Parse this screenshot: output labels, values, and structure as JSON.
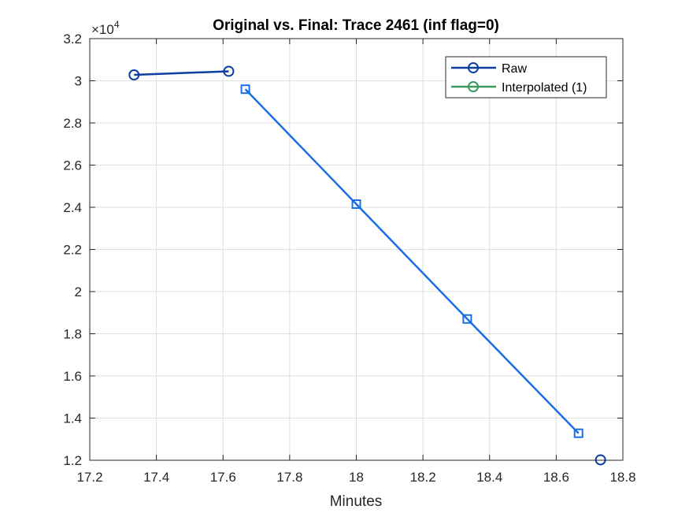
{
  "chart_data": {
    "type": "line",
    "title": "Original vs. Final: Trace 2461 (inf flag=0)",
    "xlabel": "Minutes",
    "ylabel": "",
    "xlim": [
      17.2,
      18.8
    ],
    "ylim": [
      12000,
      32000
    ],
    "xticks": [
      17.2,
      17.4,
      17.6,
      17.8,
      18,
      18.2,
      18.4,
      18.6,
      18.8
    ],
    "xtick_labels": [
      "17.2",
      "17.4",
      "17.6",
      "17.8",
      "18",
      "18.2",
      "18.4",
      "18.6",
      "18.8"
    ],
    "yticks": [
      12000,
      14000,
      16000,
      18000,
      20000,
      22000,
      24000,
      26000,
      28000,
      30000,
      32000
    ],
    "ytick_labels": [
      "1.2",
      "1.4",
      "1.6",
      "1.8",
      "2",
      "2.2",
      "2.4",
      "2.6",
      "2.8",
      "3",
      "3.2"
    ],
    "y_exponent_label": "×10",
    "y_exponent_power": "4",
    "grid": true,
    "legend_position": "top-right",
    "series": [
      {
        "name": "Raw",
        "color": "#0b3fa0",
        "marker": "circle",
        "segments": [
          {
            "x": [
              17.333,
              17.617
            ],
            "y": [
              30280,
              30450
            ]
          },
          {
            "x": [
              18.733
            ],
            "y": [
              12020
            ]
          }
        ]
      },
      {
        "name": "Interpolated (1)",
        "color": "#3a9a5e",
        "marker": "circle",
        "segments": []
      },
      {
        "name": "",
        "color": "#1a6fe6",
        "marker": "square",
        "segments": [
          {
            "x": [
              17.667,
              18.0,
              18.333,
              18.667
            ],
            "y": [
              29600,
              24150,
              18700,
              13280
            ]
          }
        ]
      }
    ]
  }
}
